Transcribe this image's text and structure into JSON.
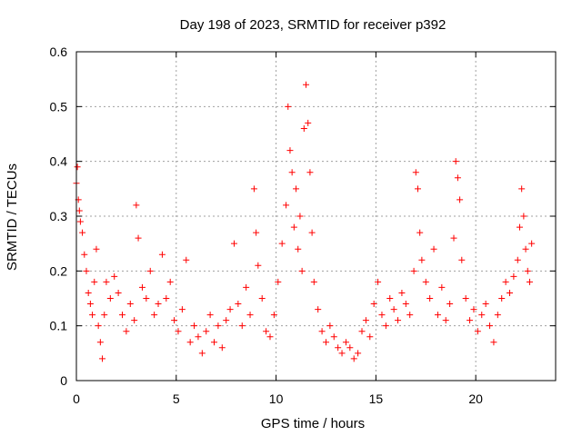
{
  "chart_data": {
    "type": "scatter",
    "title": "Day 198 of 2023, SRMTID for receiver p392",
    "xlabel": "GPS time / hours",
    "ylabel": "SRMTID / TECUs",
    "xlim": [
      0,
      24
    ],
    "ylim": [
      0,
      0.6
    ],
    "xticks": [
      0,
      5,
      10,
      15,
      20
    ],
    "xtick_labels": [
      "0",
      "5",
      "10",
      "15",
      "20"
    ],
    "yticks": [
      0,
      0.1,
      0.2,
      0.3,
      0.4,
      0.5,
      0.6
    ],
    "ytick_labels": [
      "0",
      "0.1",
      "0.2",
      "0.3",
      "0.4",
      "0.5",
      "0.6"
    ],
    "grid": true,
    "marker": "+",
    "series": [
      {
        "name": "SRMTID",
        "color": "#ff0000",
        "x": [
          0.0,
          0.05,
          0.1,
          0.15,
          0.2,
          0.3,
          0.4,
          0.5,
          0.6,
          0.7,
          0.8,
          0.9,
          1.0,
          1.1,
          1.2,
          1.3,
          1.4,
          1.5,
          1.7,
          1.9,
          2.1,
          2.3,
          2.5,
          2.7,
          2.9,
          3.0,
          3.1,
          3.3,
          3.5,
          3.7,
          3.9,
          4.1,
          4.3,
          4.5,
          4.7,
          4.9,
          5.1,
          5.3,
          5.5,
          5.7,
          5.9,
          6.1,
          6.3,
          6.5,
          6.7,
          6.9,
          7.1,
          7.3,
          7.5,
          7.7,
          7.9,
          8.1,
          8.3,
          8.5,
          8.7,
          8.9,
          9.0,
          9.1,
          9.3,
          9.5,
          9.7,
          9.9,
          10.1,
          10.3,
          10.5,
          10.6,
          10.7,
          10.8,
          10.9,
          11.0,
          11.1,
          11.2,
          11.3,
          11.4,
          11.5,
          11.6,
          11.7,
          11.8,
          11.9,
          12.1,
          12.3,
          12.5,
          12.7,
          12.9,
          13.1,
          13.3,
          13.5,
          13.7,
          13.9,
          14.1,
          14.3,
          14.5,
          14.7,
          14.9,
          15.1,
          15.3,
          15.5,
          15.7,
          15.9,
          16.1,
          16.3,
          16.5,
          16.7,
          16.9,
          17.0,
          17.1,
          17.2,
          17.3,
          17.5,
          17.7,
          17.9,
          18.1,
          18.3,
          18.5,
          18.7,
          18.9,
          19.0,
          19.1,
          19.2,
          19.3,
          19.5,
          19.7,
          19.9,
          20.1,
          20.3,
          20.5,
          20.7,
          20.9,
          21.1,
          21.3,
          21.5,
          21.7,
          21.9,
          22.1,
          22.2,
          22.3,
          22.4,
          22.5,
          22.6,
          22.7,
          22.8
        ],
        "y": [
          0.36,
          0.39,
          0.33,
          0.31,
          0.29,
          0.27,
          0.23,
          0.2,
          0.16,
          0.14,
          0.12,
          0.18,
          0.24,
          0.1,
          0.07,
          0.04,
          0.12,
          0.18,
          0.15,
          0.19,
          0.16,
          0.12,
          0.09,
          0.14,
          0.11,
          0.32,
          0.26,
          0.17,
          0.15,
          0.2,
          0.12,
          0.14,
          0.23,
          0.15,
          0.18,
          0.11,
          0.09,
          0.13,
          0.22,
          0.07,
          0.1,
          0.08,
          0.05,
          0.09,
          0.12,
          0.07,
          0.1,
          0.06,
          0.11,
          0.13,
          0.25,
          0.14,
          0.1,
          0.17,
          0.12,
          0.35,
          0.27,
          0.21,
          0.15,
          0.09,
          0.08,
          0.12,
          0.18,
          0.25,
          0.32,
          0.5,
          0.42,
          0.38,
          0.28,
          0.35,
          0.24,
          0.3,
          0.2,
          0.46,
          0.54,
          0.47,
          0.38,
          0.27,
          0.18,
          0.13,
          0.09,
          0.07,
          0.1,
          0.08,
          0.06,
          0.05,
          0.07,
          0.06,
          0.04,
          0.05,
          0.09,
          0.11,
          0.08,
          0.14,
          0.18,
          0.12,
          0.1,
          0.15,
          0.13,
          0.11,
          0.16,
          0.14,
          0.12,
          0.2,
          0.38,
          0.35,
          0.27,
          0.22,
          0.18,
          0.15,
          0.24,
          0.12,
          0.17,
          0.11,
          0.14,
          0.26,
          0.4,
          0.37,
          0.33,
          0.22,
          0.15,
          0.11,
          0.13,
          0.09,
          0.12,
          0.14,
          0.1,
          0.07,
          0.12,
          0.15,
          0.18,
          0.16,
          0.19,
          0.22,
          0.28,
          0.35,
          0.3,
          0.24,
          0.2,
          0.18,
          0.25
        ]
      }
    ]
  }
}
